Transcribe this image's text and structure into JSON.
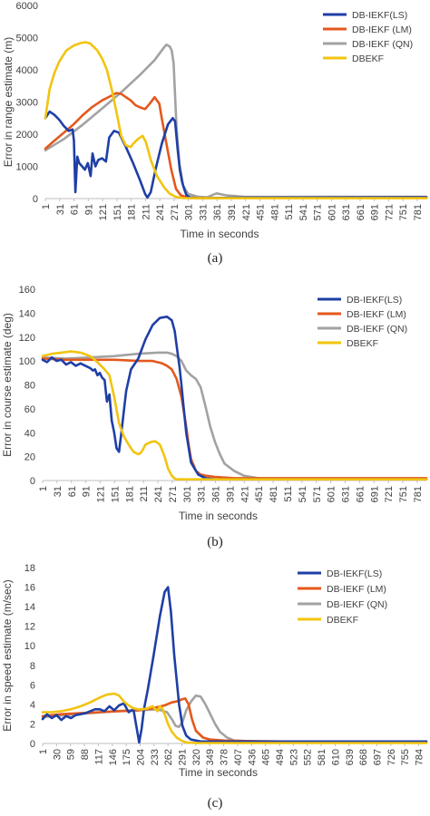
{
  "colors": {
    "DB-IEKF(LS)": "#1f3fa6",
    "DB-IEKF (LM)": "#e4581c",
    "DB-IEKF (QN)": "#a2a2a2",
    "DBEKF": "#f2c40f",
    "axis": "#bfbfbf",
    "text": "#404040"
  },
  "captions": [
    "(a)",
    "(b)",
    "(c)"
  ],
  "chart_data": [
    {
      "type": "line",
      "xlabel": "Time in seconds",
      "ylabel": "Error in range estimate (m)",
      "ylim": [
        0,
        6000
      ],
      "yticks": [
        0,
        1000,
        2000,
        3000,
        4000,
        5000,
        6000
      ],
      "xlim": [
        1,
        800
      ],
      "xticks": [
        "1",
        "31",
        "61",
        "91",
        "121",
        "151",
        "181",
        "211",
        "241",
        "271",
        "301",
        "331",
        "361",
        "391",
        "421",
        "451",
        "481",
        "511",
        "541",
        "571",
        "601",
        "631",
        "661",
        "691",
        "721",
        "751",
        "781"
      ],
      "legend_position": "top-right",
      "series": [
        {
          "name": "DB-IEKF(LS)",
          "x": [
            1,
            10,
            20,
            30,
            40,
            50,
            58,
            61,
            64,
            68,
            72,
            78,
            84,
            90,
            96,
            100,
            106,
            112,
            120,
            128,
            135,
            145,
            155,
            170,
            185,
            200,
            210,
            215,
            222,
            232,
            245,
            258,
            268,
            273,
            278,
            283,
            288,
            292,
            297,
            305,
            320,
            340,
            370,
            420,
            800
          ],
          "y": [
            2500,
            2700,
            2600,
            2450,
            2250,
            2100,
            2150,
            1800,
            200,
            1300,
            1100,
            1000,
            900,
            1100,
            700,
            1400,
            1000,
            1200,
            1250,
            1150,
            1900,
            2100,
            2050,
            1600,
            1100,
            550,
            150,
            30,
            200,
            900,
            1700,
            2300,
            2500,
            2400,
            1600,
            900,
            500,
            300,
            100,
            30,
            15,
            15,
            20,
            30,
            40
          ]
        },
        {
          "name": "DB-IEKF (LM)",
          "x": [
            1,
            20,
            40,
            60,
            80,
            100,
            120,
            140,
            150,
            160,
            170,
            180,
            190,
            200,
            210,
            220,
            230,
            240,
            245,
            255,
            265,
            275,
            285,
            300,
            320,
            360,
            800
          ],
          "y": [
            1550,
            1800,
            2050,
            2300,
            2600,
            2850,
            3050,
            3200,
            3280,
            3250,
            3150,
            3050,
            2900,
            2830,
            2780,
            2950,
            3150,
            2950,
            2500,
            1700,
            900,
            300,
            100,
            30,
            20,
            20,
            40
          ]
        },
        {
          "name": "DB-IEKF (QN)",
          "x": [
            1,
            40,
            80,
            120,
            160,
            200,
            230,
            250,
            255,
            262,
            266,
            270,
            272,
            276,
            282,
            290,
            300,
            320,
            340,
            350,
            360,
            380,
            420,
            500,
            600,
            700,
            800
          ],
          "y": [
            1500,
            1850,
            2300,
            2800,
            3300,
            3850,
            4300,
            4700,
            4780,
            4720,
            4600,
            4200,
            3500,
            2200,
            1100,
            400,
            150,
            60,
            40,
            100,
            160,
            100,
            50,
            50,
            55,
            55,
            55
          ]
        },
        {
          "name": "DBEKF",
          "x": [
            1,
            10,
            20,
            30,
            45,
            60,
            75,
            85,
            95,
            110,
            120,
            130,
            140,
            150,
            160,
            170,
            180,
            185,
            195,
            205,
            212,
            222,
            235,
            250,
            262,
            275,
            290,
            310,
            400,
            800
          ],
          "y": [
            2500,
            3400,
            3900,
            4250,
            4600,
            4750,
            4830,
            4860,
            4820,
            4600,
            4350,
            4000,
            3400,
            2700,
            1950,
            1650,
            1600,
            1700,
            1850,
            1950,
            1750,
            1200,
            700,
            350,
            150,
            50,
            15,
            10,
            10,
            10
          ]
        }
      ]
    },
    {
      "type": "line",
      "xlabel": "Time in seconds",
      "ylabel": "Error in course estimate (deg)",
      "ylim": [
        0,
        160
      ],
      "yticks": [
        0,
        20,
        40,
        60,
        80,
        100,
        120,
        140,
        160
      ],
      "xlim": [
        1,
        800
      ],
      "xticks": [
        "1",
        "31",
        "61",
        "91",
        "121",
        "151",
        "181",
        "211",
        "241",
        "271",
        "301",
        "331",
        "361",
        "391",
        "421",
        "451",
        "481",
        "511",
        "541",
        "571",
        "601",
        "631",
        "661",
        "691",
        "721",
        "751",
        "781"
      ],
      "legend_position": "top-right",
      "series": [
        {
          "name": "DB-IEKF(LS)",
          "x": [
            1,
            10,
            20,
            30,
            40,
            50,
            60,
            70,
            80,
            90,
            100,
            106,
            110,
            115,
            120,
            125,
            130,
            135,
            140,
            145,
            150,
            155,
            160,
            165,
            170,
            175,
            185,
            200,
            215,
            230,
            245,
            260,
            270,
            276,
            281,
            286,
            290,
            295,
            300,
            310,
            325,
            340,
            360,
            420,
            800
          ],
          "y": [
            101,
            99,
            103,
            100,
            101,
            97,
            99,
            96,
            98,
            96,
            94,
            92,
            93,
            88,
            90,
            86,
            84,
            66,
            72,
            50,
            40,
            27,
            24,
            40,
            58,
            75,
            93,
            102,
            118,
            130,
            136,
            137,
            134,
            125,
            110,
            95,
            80,
            60,
            40,
            15,
            5,
            2,
            1,
            1,
            1
          ]
        },
        {
          "name": "DB-IEKF (LM)",
          "x": [
            1,
            50,
            100,
            150,
            200,
            230,
            250,
            260,
            270,
            280,
            290,
            300,
            305,
            310,
            320,
            330,
            340,
            360,
            400,
            800
          ],
          "y": [
            102,
            101,
            101,
            101,
            100,
            100,
            98,
            96,
            93,
            85,
            70,
            45,
            30,
            18,
            8,
            5,
            4,
            3,
            2,
            2
          ]
        },
        {
          "name": "DB-IEKF (QN)",
          "x": [
            1,
            50,
            100,
            150,
            200,
            240,
            260,
            270,
            280,
            290,
            300,
            310,
            320,
            330,
            340,
            350,
            360,
            370,
            380,
            400,
            420,
            450,
            500,
            800
          ],
          "y": [
            103,
            102,
            103,
            104,
            106,
            107,
            107,
            106,
            104,
            100,
            92,
            88,
            85,
            78,
            62,
            45,
            32,
            22,
            14,
            8,
            4,
            2,
            1,
            1
          ]
        },
        {
          "name": "DBEKF",
          "x": [
            1,
            20,
            40,
            60,
            80,
            100,
            115,
            130,
            140,
            150,
            160,
            170,
            180,
            190,
            200,
            205,
            210,
            215,
            225,
            235,
            245,
            255,
            262,
            270,
            275,
            280,
            290,
            300,
            350,
            800
          ],
          "y": [
            104,
            106,
            107,
            108,
            107,
            104,
            99,
            93,
            88,
            70,
            48,
            37,
            30,
            24,
            22,
            23,
            26,
            30,
            32,
            33,
            30,
            20,
            10,
            4,
            2,
            1,
            1,
            1,
            1,
            1
          ]
        }
      ]
    },
    {
      "type": "line",
      "xlabel": "Time in seconds",
      "ylabel": "Error in speed estimate (m/sec)",
      "ylim": [
        0,
        18
      ],
      "yticks": [
        0,
        2,
        4,
        6,
        8,
        10,
        12,
        14,
        16,
        18
      ],
      "xlim": [
        1,
        800
      ],
      "xticks": [
        "1",
        "30",
        "59",
        "88",
        "117",
        "146",
        "175",
        "204",
        "233",
        "262",
        "291",
        "320",
        "349",
        "378",
        "407",
        "436",
        "465",
        "494",
        "523",
        "552",
        "581",
        "610",
        "639",
        "668",
        "697",
        "726",
        "755",
        "784"
      ],
      "legend_position": "top-right",
      "series": [
        {
          "name": "DB-IEKF(LS)",
          "x": [
            1,
            10,
            20,
            30,
            40,
            50,
            60,
            70,
            80,
            90,
            100,
            110,
            120,
            130,
            140,
            150,
            160,
            170,
            180,
            190,
            197,
            202,
            207,
            212,
            220,
            232,
            245,
            255,
            262,
            268,
            275,
            285,
            292,
            300,
            310,
            330,
            350,
            400,
            800
          ],
          "y": [
            2.5,
            3.0,
            2.6,
            2.9,
            2.4,
            2.8,
            2.6,
            2.9,
            3.0,
            3.1,
            3.3,
            3.5,
            3.5,
            3.3,
            3.8,
            3.4,
            3.9,
            4.1,
            3.2,
            3.5,
            1.5,
            0.1,
            1.5,
            3.5,
            5.5,
            9.0,
            13.0,
            15.5,
            16.0,
            13.5,
            9.0,
            4.0,
            1.8,
            0.8,
            0.4,
            0.2,
            0.2,
            0.2,
            0.2
          ]
        },
        {
          "name": "DB-IEKF (LM)",
          "x": [
            1,
            40,
            80,
            120,
            160,
            200,
            230,
            255,
            270,
            280,
            290,
            298,
            305,
            312,
            320,
            335,
            350,
            380,
            420,
            500,
            600,
            800
          ],
          "y": [
            2.8,
            3.0,
            3.1,
            3.2,
            3.3,
            3.4,
            3.6,
            3.9,
            4.2,
            4.3,
            4.5,
            4.6,
            4.0,
            2.5,
            1.3,
            0.6,
            0.4,
            0.3,
            0.25,
            0.2,
            0.2,
            0.2
          ]
        },
        {
          "name": "DB-IEKF (QN)",
          "x": [
            1,
            50,
            100,
            150,
            200,
            240,
            260,
            270,
            278,
            285,
            292,
            300,
            310,
            320,
            330,
            340,
            350,
            360,
            370,
            385,
            400,
            450,
            500,
            800
          ],
          "y": [
            2.7,
            2.9,
            3.1,
            3.3,
            3.4,
            3.5,
            3.2,
            2.5,
            1.8,
            1.7,
            2.2,
            3.4,
            4.3,
            4.9,
            4.8,
            4.0,
            3.0,
            2.0,
            1.2,
            0.6,
            0.3,
            0.2,
            0.2,
            0.2
          ]
        },
        {
          "name": "DBEKF",
          "x": [
            1,
            20,
            40,
            60,
            80,
            100,
            120,
            135,
            150,
            160,
            170,
            180,
            190,
            200,
            210,
            220,
            230,
            240,
            245,
            250,
            255,
            262,
            270,
            280,
            290,
            300,
            320,
            350,
            400,
            800
          ],
          "y": [
            3.2,
            3.2,
            3.3,
            3.5,
            3.8,
            4.2,
            4.7,
            5.0,
            5.1,
            4.9,
            4.3,
            3.9,
            3.6,
            3.5,
            3.5,
            3.6,
            3.8,
            3.3,
            3.8,
            3.6,
            3.0,
            2.0,
            1.2,
            0.6,
            0.3,
            0.1,
            0.05,
            0.05,
            0.05,
            0.05
          ]
        }
      ]
    }
  ]
}
